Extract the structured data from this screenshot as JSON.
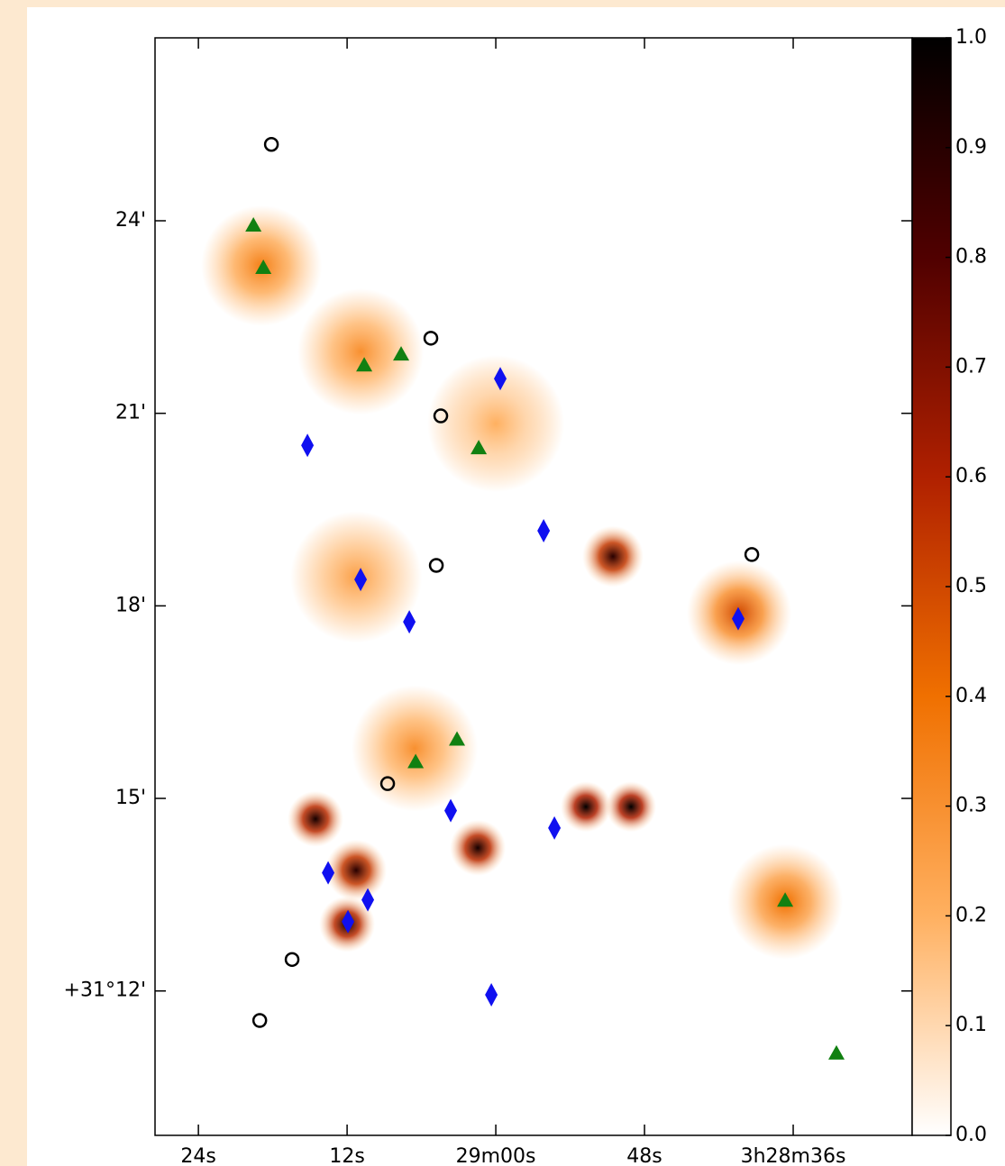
{
  "chart_data": {
    "type": "image",
    "xlim": [
      87.5,
      26.4
    ],
    "ylim": [
      9.75,
      26.85
    ],
    "xticks": [
      {
        "value": 84,
        "label": "24s"
      },
      {
        "value": 72,
        "label": "12s"
      },
      {
        "value": 60,
        "label": "29m00s"
      },
      {
        "value": 48,
        "label": "48s"
      },
      {
        "value": 36,
        "label": "3h28m36s"
      }
    ],
    "yticks": [
      {
        "value": 12,
        "label": "+31°12'"
      },
      {
        "value": 15,
        "label": "15'"
      },
      {
        "value": 18,
        "label": "18'"
      },
      {
        "value": 21,
        "label": "21'"
      },
      {
        "value": 24,
        "label": "24'"
      }
    ],
    "colorbar": {
      "ylim": [
        0,
        1
      ],
      "yticks": [
        {
          "value": 0,
          "label": "0.0"
        },
        {
          "value": 0.1,
          "label": "0.1"
        },
        {
          "value": 0.2,
          "label": "0.2"
        },
        {
          "value": 0.3,
          "label": "0.3"
        },
        {
          "value": 0.4,
          "label": "0.4"
        },
        {
          "value": 0.5,
          "label": "0.5"
        },
        {
          "value": 0.6,
          "label": "0.6"
        },
        {
          "value": 0.7,
          "label": "0.7"
        },
        {
          "value": 0.8,
          "label": "0.8"
        },
        {
          "value": 0.9,
          "label": "0.9"
        },
        {
          "value": 1,
          "label": "1.0"
        }
      ],
      "colormap": [
        "#ffffff",
        "#ffb060",
        "#f07000",
        "#b02000",
        "#500000",
        "#000000"
      ]
    },
    "emission": {
      "x": [
        49.09,
        52.73,
        61.45,
        72.0,
        71.27,
        74.55,
        50.55,
        66.55,
        60.0,
        71.27,
        40.36,
        36.65,
        78.91,
        70.91
      ],
      "y": [
        14.87,
        14.87,
        14.23,
        13.04,
        13.88,
        14.68,
        18.77,
        15.78,
        20.84,
        18.45,
        17.89,
        13.39,
        23.3,
        21.96
      ],
      "values": [
        1.0,
        1.0,
        0.95,
        0.95,
        0.9,
        0.95,
        0.9,
        0.3,
        0.2,
        0.25,
        0.5,
        0.4,
        0.35,
        0.3
      ]
    },
    "series": [
      {
        "marker": "triangle",
        "color": "#118011",
        "x": [
          79.56,
          78.76,
          70.62,
          67.64,
          61.38,
          63.13,
          66.47,
          36.65,
          32.51
        ],
        "y": [
          23.93,
          23.27,
          21.75,
          21.92,
          20.46,
          15.92,
          15.57,
          13.41,
          11.03
        ]
      },
      {
        "marker": "diamond",
        "color": "#1010f0",
        "x": [
          59.64,
          75.2,
          56.14,
          70.91,
          66.98,
          40.44,
          63.64,
          55.27,
          73.53,
          70.33,
          71.93,
          60.36
        ],
        "y": [
          21.54,
          20.5,
          19.17,
          18.41,
          17.75,
          17.8,
          14.81,
          14.54,
          13.84,
          13.42,
          13.08,
          11.94
        ]
      },
      {
        "marker": "circle",
        "color": "#000000",
        "x": [
          78.11,
          65.24,
          64.44,
          64.8,
          39.34,
          68.73,
          76.44,
          79.05
        ],
        "y": [
          25.19,
          22.17,
          20.96,
          18.63,
          18.8,
          15.23,
          12.49,
          11.54
        ]
      }
    ]
  }
}
